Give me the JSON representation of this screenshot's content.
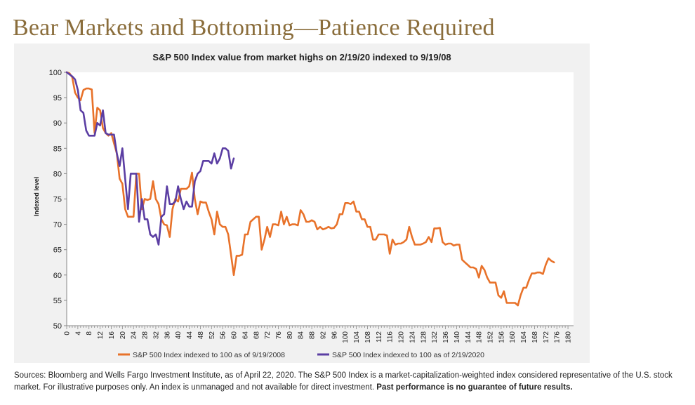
{
  "page": {
    "title": "Bear Markets and Bottoming—Patience Required",
    "sources": "Sources: Bloomberg and Wells Fargo Investment Institute, as of April 22, 2020. The S&P 500 Index is a market-capitalization-weighted index considered representative of the U.S. stock market. For illustrative purposes only. An index is unmanaged and not available for direct investment. ",
    "disclaimer_bold": "Past performance is no guarantee of future results."
  },
  "colors": {
    "series_2008": "#e8722a",
    "series_2020": "#5b3ea3",
    "panel_bg": "#f1f1f1",
    "title_color": "#8a6d3b"
  },
  "chart_data": {
    "type": "line",
    "title": "S&P 500 Index value from market highs on 2/19/20 indexed to 9/19/08",
    "xlabel": "",
    "ylabel": "Indexed level",
    "xlim": [
      0,
      182
    ],
    "ylim": [
      50,
      100
    ],
    "yticks": [
      50,
      55,
      60,
      65,
      70,
      75,
      80,
      85,
      90,
      95,
      100
    ],
    "xticks": [
      0,
      4,
      8,
      12,
      16,
      20,
      24,
      28,
      32,
      36,
      40,
      44,
      48,
      52,
      56,
      60,
      64,
      68,
      72,
      76,
      80,
      84,
      88,
      92,
      96,
      100,
      104,
      108,
      112,
      116,
      120,
      124,
      128,
      132,
      136,
      140,
      144,
      148,
      152,
      156,
      160,
      164,
      168,
      172,
      176,
      180
    ],
    "legend_position": "bottom",
    "series": [
      {
        "name": "S&P 500 Index indexed to 100 as of 9/19/2008",
        "points": [
          [
            0,
            100
          ],
          [
            1,
            99.8
          ],
          [
            2,
            99
          ],
          [
            3,
            96
          ],
          [
            4,
            95
          ],
          [
            5,
            94.5
          ],
          [
            6,
            96.5
          ],
          [
            7,
            96.8
          ],
          [
            8,
            96.8
          ],
          [
            9,
            96.6
          ],
          [
            10,
            88
          ],
          [
            11,
            93
          ],
          [
            12,
            92.5
          ],
          [
            13,
            89
          ],
          [
            14,
            88
          ],
          [
            15,
            87.5
          ],
          [
            16,
            88
          ],
          [
            17,
            86
          ],
          [
            18,
            84
          ],
          [
            19,
            79
          ],
          [
            20,
            78
          ],
          [
            21,
            73
          ],
          [
            22,
            71.5
          ],
          [
            23,
            71.5
          ],
          [
            24,
            71.5
          ],
          [
            25,
            80
          ],
          [
            26,
            80
          ],
          [
            27,
            73
          ],
          [
            28,
            75
          ],
          [
            29,
            74.8
          ],
          [
            30,
            75
          ],
          [
            31,
            78.5
          ],
          [
            32,
            75
          ],
          [
            33,
            74
          ],
          [
            34,
            71
          ],
          [
            35,
            70
          ],
          [
            36,
            69.8
          ],
          [
            37,
            67.5
          ],
          [
            38,
            73
          ],
          [
            39,
            75
          ],
          [
            40,
            74.5
          ],
          [
            41,
            77
          ],
          [
            42,
            77
          ],
          [
            43,
            77
          ],
          [
            44,
            77.5
          ],
          [
            45,
            80.2
          ],
          [
            46,
            75
          ],
          [
            47,
            72
          ],
          [
            48,
            74.5
          ],
          [
            49,
            74.3
          ],
          [
            50,
            74.3
          ],
          [
            51,
            72.5
          ],
          [
            52,
            71
          ],
          [
            53,
            68
          ],
          [
            54,
            72.5
          ],
          [
            55,
            70
          ],
          [
            56,
            69.5
          ],
          [
            57,
            69.5
          ],
          [
            58,
            68
          ],
          [
            59,
            64
          ],
          [
            60,
            60
          ],
          [
            61,
            63.8
          ],
          [
            62,
            63.8
          ],
          [
            63,
            64
          ],
          [
            64,
            68
          ],
          [
            65,
            68
          ],
          [
            66,
            70.5
          ],
          [
            67,
            71
          ],
          [
            68,
            71.5
          ],
          [
            69,
            71.5
          ],
          [
            70,
            65
          ],
          [
            71,
            67
          ],
          [
            72,
            69.5
          ],
          [
            73,
            67.5
          ],
          [
            74,
            70
          ],
          [
            75,
            70
          ],
          [
            76,
            69.8
          ],
          [
            77,
            72.5
          ],
          [
            78,
            70
          ],
          [
            79,
            71.5
          ],
          [
            80,
            69.8
          ],
          [
            81,
            70
          ],
          [
            82,
            70
          ],
          [
            83,
            69.8
          ],
          [
            84,
            72.8
          ],
          [
            85,
            72
          ],
          [
            86,
            70.5
          ],
          [
            87,
            70.5
          ],
          [
            88,
            70.8
          ],
          [
            89,
            70.5
          ],
          [
            90,
            69
          ],
          [
            91,
            69.5
          ],
          [
            92,
            69
          ],
          [
            93,
            69.2
          ],
          [
            94,
            69.5
          ],
          [
            95,
            69.2
          ],
          [
            96,
            69.3
          ],
          [
            97,
            70
          ],
          [
            98,
            72
          ],
          [
            99,
            72
          ],
          [
            100,
            74.2
          ],
          [
            101,
            74.2
          ],
          [
            102,
            74
          ],
          [
            103,
            74.5
          ],
          [
            104,
            72.5
          ],
          [
            105,
            72.5
          ],
          [
            106,
            71
          ],
          [
            107,
            71
          ],
          [
            108,
            69.5
          ],
          [
            109,
            69.5
          ],
          [
            110,
            67
          ],
          [
            111,
            67
          ],
          [
            112,
            68
          ],
          [
            113,
            68
          ],
          [
            114,
            68
          ],
          [
            115,
            67.8
          ],
          [
            116,
            64.2
          ],
          [
            117,
            67
          ],
          [
            118,
            66
          ],
          [
            119,
            66.2
          ],
          [
            120,
            66.2
          ],
          [
            121,
            66.5
          ],
          [
            122,
            67
          ],
          [
            123,
            69.5
          ],
          [
            124,
            67.5
          ],
          [
            125,
            66
          ],
          [
            126,
            66
          ],
          [
            127,
            66
          ],
          [
            128,
            66.2
          ],
          [
            129,
            66.5
          ],
          [
            130,
            67.5
          ],
          [
            131,
            66.5
          ],
          [
            132,
            69.2
          ],
          [
            133,
            69.2
          ],
          [
            134,
            69.3
          ],
          [
            135,
            66.5
          ],
          [
            136,
            66
          ],
          [
            137,
            66.2
          ],
          [
            138,
            66.2
          ],
          [
            139,
            65.8
          ],
          [
            140,
            66
          ],
          [
            141,
            66
          ],
          [
            142,
            63
          ],
          [
            143,
            62.5
          ],
          [
            144,
            62
          ],
          [
            145,
            61.5
          ],
          [
            146,
            61.5
          ],
          [
            147,
            61.2
          ],
          [
            148,
            59.5
          ],
          [
            149,
            61.8
          ],
          [
            150,
            61
          ],
          [
            151,
            59.5
          ],
          [
            152,
            58.5
          ],
          [
            153,
            58.5
          ],
          [
            154,
            58.5
          ],
          [
            155,
            56
          ],
          [
            156,
            55.5
          ],
          [
            157,
            56.8
          ],
          [
            158,
            54.5
          ],
          [
            159,
            54.5
          ],
          [
            160,
            54.5
          ],
          [
            161,
            54.5
          ],
          [
            162,
            54
          ],
          [
            163,
            56
          ],
          [
            164,
            57.5
          ],
          [
            165,
            57.5
          ],
          [
            166,
            59
          ],
          [
            167,
            60.3
          ],
          [
            168,
            60.3
          ],
          [
            169,
            60.5
          ],
          [
            170,
            60.5
          ],
          [
            171,
            60.2
          ],
          [
            172,
            62
          ],
          [
            173,
            63.3
          ],
          [
            174,
            62.8
          ],
          [
            175,
            62.5
          ]
        ]
      },
      {
        "name": "S&P 500 Index indexed to 100 as of 2/19/2020",
        "points": [
          [
            0,
            100
          ],
          [
            1,
            99.6
          ],
          [
            2,
            99.2
          ],
          [
            3,
            98.6
          ],
          [
            4,
            96.5
          ],
          [
            5,
            92.5
          ],
          [
            6,
            92
          ],
          [
            7,
            88.5
          ],
          [
            8,
            87.5
          ],
          [
            9,
            87.5
          ],
          [
            10,
            87.5
          ],
          [
            11,
            90
          ],
          [
            12,
            89.5
          ],
          [
            13,
            92.5
          ],
          [
            14,
            88
          ],
          [
            15,
            87.7
          ],
          [
            16,
            87.7
          ],
          [
            17,
            87.7
          ],
          [
            18,
            84
          ],
          [
            19,
            81.5
          ],
          [
            20,
            85
          ],
          [
            21,
            79
          ],
          [
            22,
            73
          ],
          [
            23,
            80
          ],
          [
            24,
            80
          ],
          [
            25,
            80
          ],
          [
            26,
            70.5
          ],
          [
            27,
            75
          ],
          [
            28,
            71
          ],
          [
            29,
            71
          ],
          [
            30,
            68
          ],
          [
            31,
            67.5
          ],
          [
            32,
            68
          ],
          [
            33,
            66
          ],
          [
            34,
            71.5
          ],
          [
            35,
            72
          ],
          [
            36,
            77.5
          ],
          [
            37,
            74
          ],
          [
            38,
            74
          ],
          [
            39,
            74.5
          ],
          [
            40,
            77.5
          ],
          [
            41,
            75
          ],
          [
            42,
            73
          ],
          [
            43,
            74.5
          ],
          [
            44,
            73.5
          ],
          [
            45,
            73.5
          ],
          [
            46,
            78.5
          ],
          [
            47,
            80
          ],
          [
            48,
            80.5
          ],
          [
            49,
            82.5
          ],
          [
            50,
            82.5
          ],
          [
            51,
            82.5
          ],
          [
            52,
            82
          ],
          [
            53,
            84
          ],
          [
            54,
            82
          ],
          [
            55,
            83
          ],
          [
            56,
            85
          ],
          [
            57,
            85
          ],
          [
            58,
            84.5
          ],
          [
            59,
            81
          ],
          [
            60,
            83
          ]
        ]
      }
    ]
  }
}
